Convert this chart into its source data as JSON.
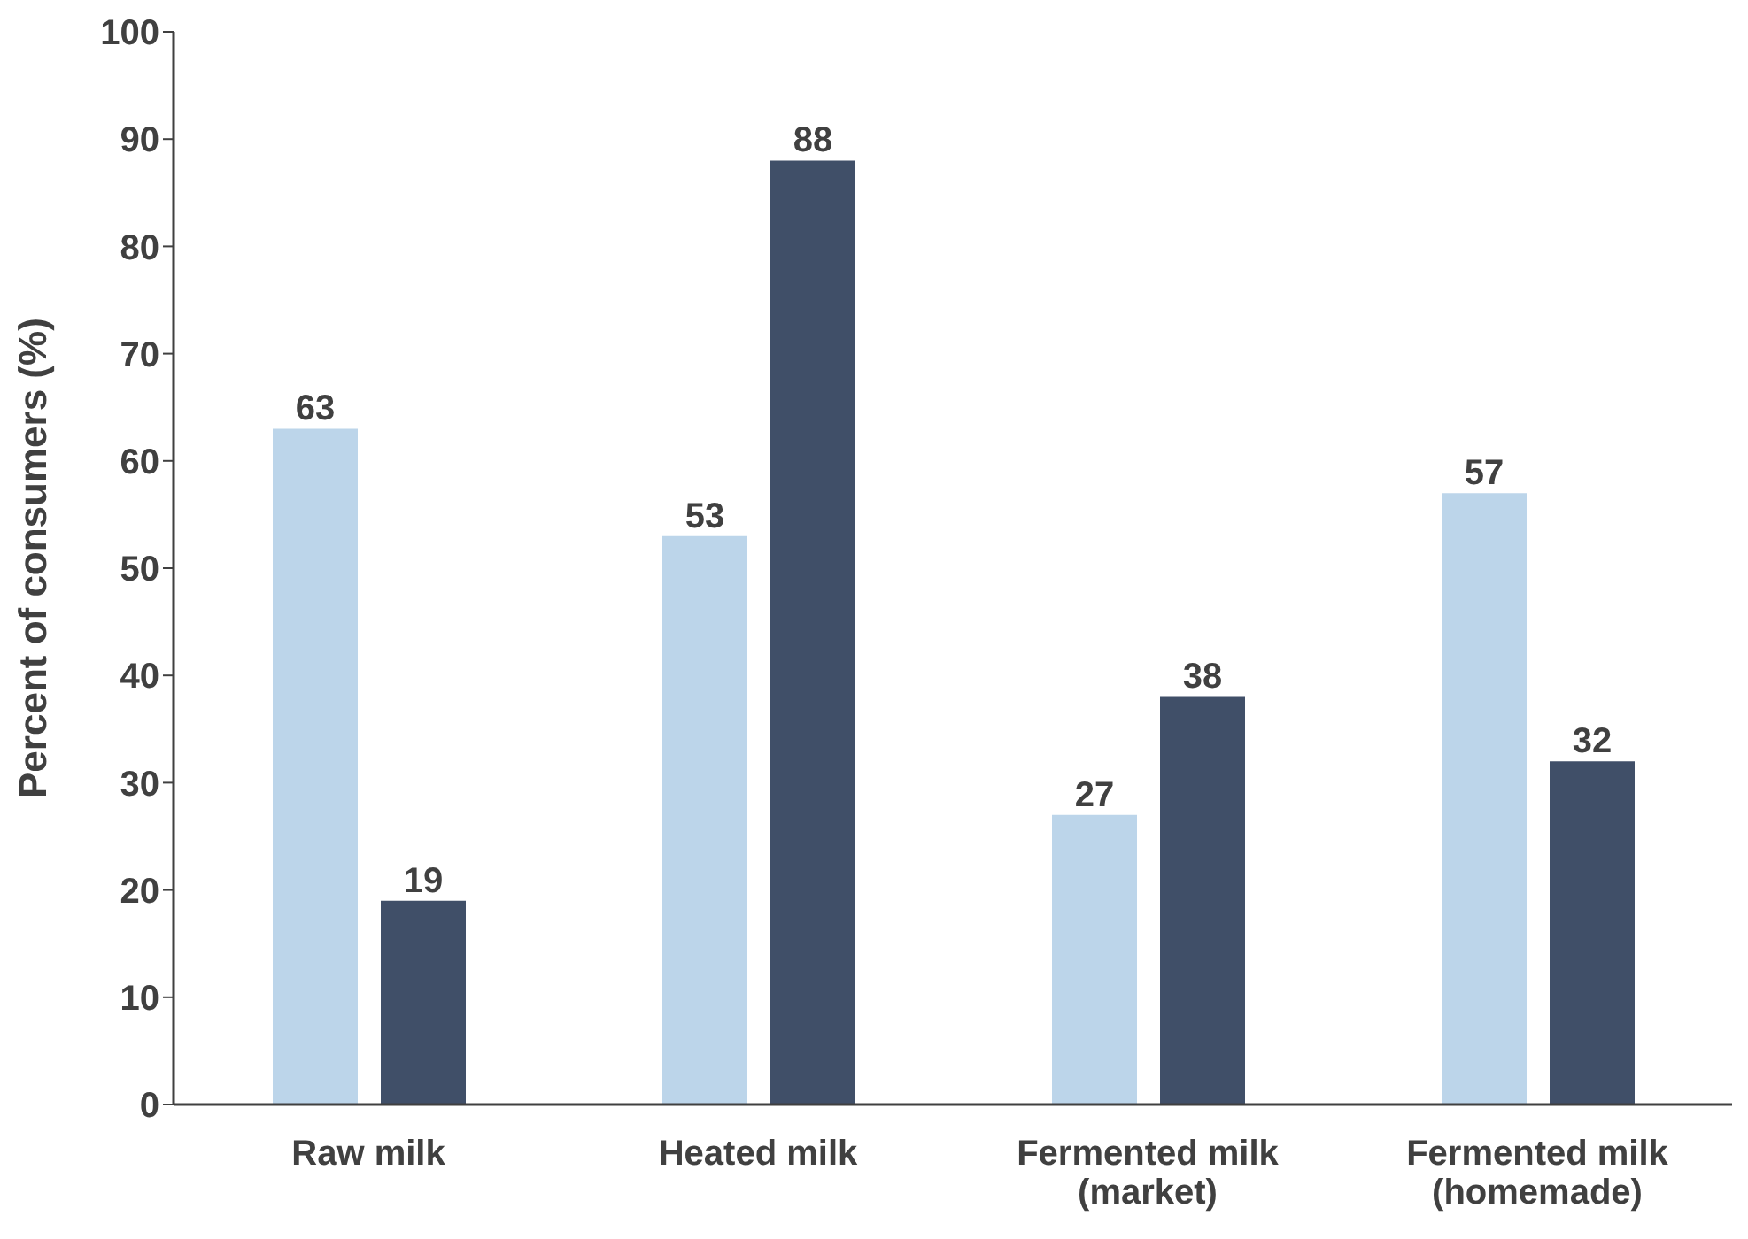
{
  "chart_data": {
    "type": "bar",
    "ylabel": "Percent of consumers (%)",
    "categories": [
      "Raw milk",
      "Heated milk",
      "Fermented milk (market)",
      "Fermented milk (homemade)"
    ],
    "series": [
      {
        "color": "#bcd5ea",
        "values": [
          63,
          53,
          27,
          57
        ]
      },
      {
        "color": "#404f68",
        "values": [
          19,
          88,
          38,
          32
        ]
      }
    ],
    "ylim": [
      0,
      100
    ],
    "yticks": [
      0,
      10,
      20,
      30,
      40,
      50,
      60,
      70,
      80,
      90,
      100
    ],
    "grid": false,
    "legend": false,
    "data_labels": true
  }
}
